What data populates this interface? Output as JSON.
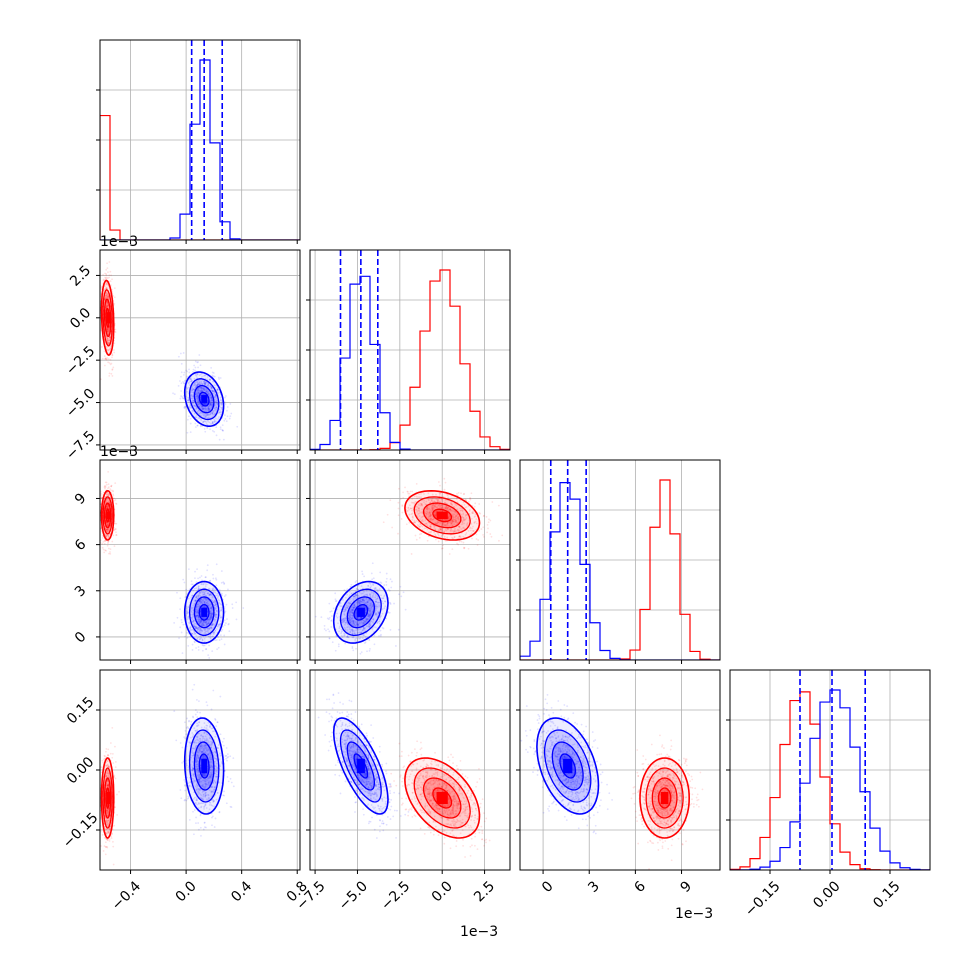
{
  "colors": {
    "series_a": "#ff0000",
    "series_b": "#0000ff",
    "grid": "#b0b0b0"
  },
  "chart_data": {
    "type": "corner",
    "grid": true,
    "legend": "none",
    "parameters": [
      {
        "id": "p1",
        "scale": 1,
        "range": [
          -0.62,
          0.82
        ],
        "ticks": [
          -0.4,
          0.0,
          0.4,
          0.8
        ],
        "tick_labels": [
          "−0.4",
          "0.0",
          "0.4",
          "0.8"
        ],
        "offset_text": ""
      },
      {
        "id": "p2",
        "scale": 0.001,
        "range": [
          -7.8,
          4.0
        ],
        "ticks": [
          -7.5,
          -5.0,
          -2.5,
          0.0,
          2.5
        ],
        "tick_labels": [
          "−7.5",
          "−5.0",
          "−2.5",
          "0.0",
          "2.5"
        ],
        "offset_text": "1e−3"
      },
      {
        "id": "p3",
        "scale": 0.001,
        "range": [
          -1.5,
          11.5
        ],
        "ticks": [
          0,
          3,
          6,
          9
        ],
        "tick_labels": [
          "0",
          "3",
          "6",
          "9"
        ],
        "offset_text": "1e−3"
      },
      {
        "id": "p4",
        "scale": 1,
        "range": [
          -0.25,
          0.25
        ],
        "ticks": [
          -0.15,
          0.0,
          0.15
        ],
        "tick_labels": [
          "−0.15",
          "0.00",
          "0.15"
        ],
        "offset_text": ""
      }
    ],
    "series": [
      {
        "color": "#ff0000",
        "mean": [
          -0.565,
          0.0,
          7.9,
          -0.07
        ],
        "sd": [
          0.022,
          1.1,
          0.8,
          0.05
        ]
      },
      {
        "color": "#0000ff",
        "mean": [
          0.13,
          -4.8,
          1.6,
          0.01
        ],
        "sd": [
          0.07,
          0.8,
          1.0,
          0.06
        ],
        "quantiles": [
          [
            0.04,
            0.13,
            0.26
          ],
          [
            -6.0,
            -4.8,
            -3.8
          ],
          [
            0.5,
            1.6,
            2.8
          ],
          [
            -0.075,
            0.005,
            0.088
          ]
        ]
      }
    ],
    "correlations": [
      {
        "pair": [
          1,
          2
        ],
        "series": 0,
        "r": -0.2
      },
      {
        "pair": [
          1,
          2
        ],
        "series": 1,
        "r": -0.25
      },
      {
        "pair": [
          1,
          3
        ],
        "series": 0,
        "r": 0.0
      },
      {
        "pair": [
          1,
          3
        ],
        "series": 1,
        "r": 0.0
      },
      {
        "pair": [
          2,
          3
        ],
        "series": 0,
        "r": -0.3
      },
      {
        "pair": [
          2,
          3
        ],
        "series": 1,
        "r": 0.3
      },
      {
        "pair": [
          1,
          4
        ],
        "series": 0,
        "r": 0.0
      },
      {
        "pair": [
          1,
          4
        ],
        "series": 1,
        "r": -0.1
      },
      {
        "pair": [
          2,
          4
        ],
        "series": 0,
        "r": -0.45
      },
      {
        "pair": [
          2,
          4
        ],
        "series": 1,
        "r": -0.7
      },
      {
        "pair": [
          3,
          4
        ],
        "series": 0,
        "r": 0.0
      },
      {
        "pair": [
          3,
          4
        ],
        "series": 1,
        "r": -0.4
      }
    ]
  }
}
